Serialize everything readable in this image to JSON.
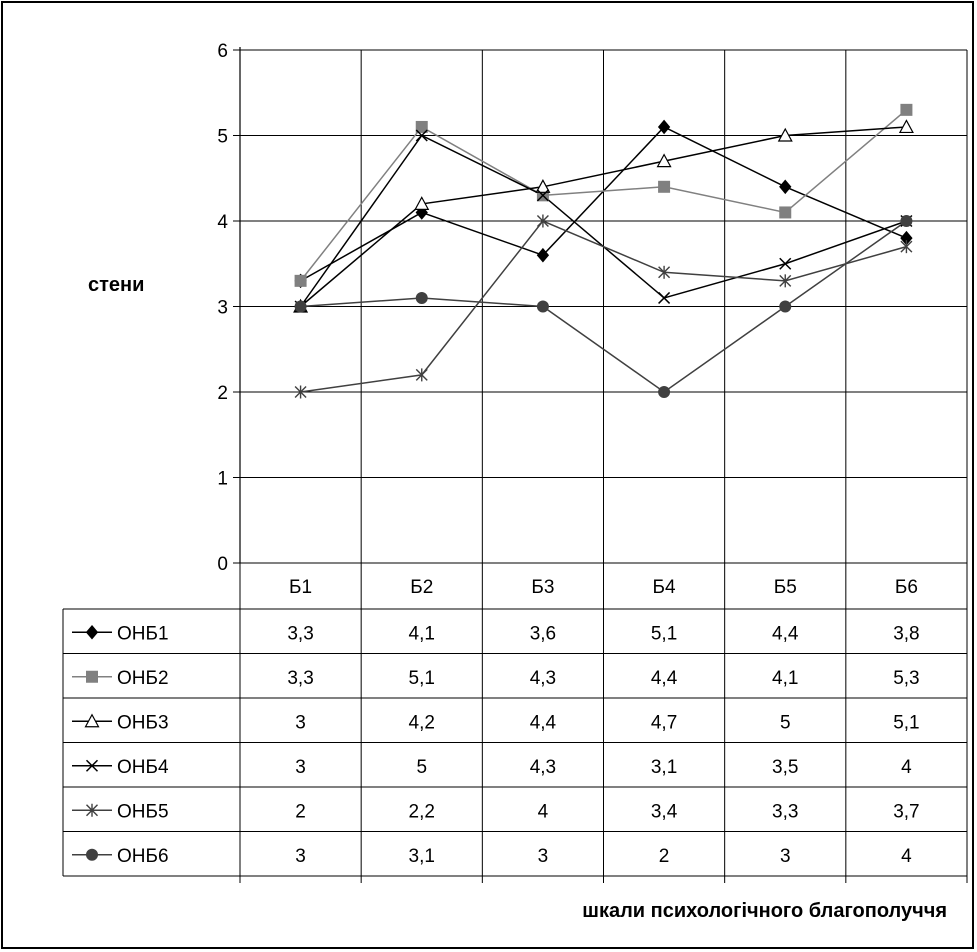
{
  "chart_data": {
    "type": "line",
    "ylabel": "стени",
    "xlabel": "шкали психологічного благополуччя",
    "categories": [
      "Б1",
      "Б2",
      "Б3",
      "Б4",
      "Б5",
      "Б6"
    ],
    "ylim": [
      0,
      6
    ],
    "yticks": [
      "0",
      "1",
      "2",
      "3",
      "4",
      "5",
      "6"
    ],
    "grid": true,
    "legend": "data-table",
    "series": [
      {
        "name": "ОНБ1",
        "values": [
          3.3,
          4.1,
          3.6,
          5.1,
          4.4,
          3.8
        ],
        "labels": [
          "3,3",
          "4,1",
          "3,6",
          "5,1",
          "4,4",
          "3,8"
        ],
        "marker": "diamond",
        "color": "#000000"
      },
      {
        "name": "ОНБ2",
        "values": [
          3.3,
          5.1,
          4.3,
          4.4,
          4.1,
          5.3
        ],
        "labels": [
          "3,3",
          "5,1",
          "4,3",
          "4,4",
          "4,1",
          "5,3"
        ],
        "marker": "square",
        "color": "#808080"
      },
      {
        "name": "ОНБ3",
        "values": [
          3,
          4.2,
          4.4,
          4.7,
          5,
          5.1
        ],
        "labels": [
          "3",
          "4,2",
          "4,4",
          "4,7",
          "5",
          "5,1"
        ],
        "marker": "triangle",
        "color": "#000000"
      },
      {
        "name": "ОНБ4",
        "values": [
          3,
          5,
          4.3,
          3.1,
          3.5,
          4
        ],
        "labels": [
          "3",
          "5",
          "4,3",
          "3,1",
          "3,5",
          "4"
        ],
        "marker": "x",
        "color": "#000000"
      },
      {
        "name": "ОНБ5",
        "values": [
          2,
          2.2,
          4,
          3.4,
          3.3,
          3.7
        ],
        "labels": [
          "2",
          "2,2",
          "4",
          "3,4",
          "3,3",
          "3,7"
        ],
        "marker": "star",
        "color": "#404040"
      },
      {
        "name": "ОНБ6",
        "values": [
          3,
          3.1,
          3,
          2,
          3,
          4
        ],
        "labels": [
          "3",
          "3,1",
          "3",
          "2",
          "3",
          "4"
        ],
        "marker": "circle",
        "color": "#404040"
      }
    ]
  }
}
